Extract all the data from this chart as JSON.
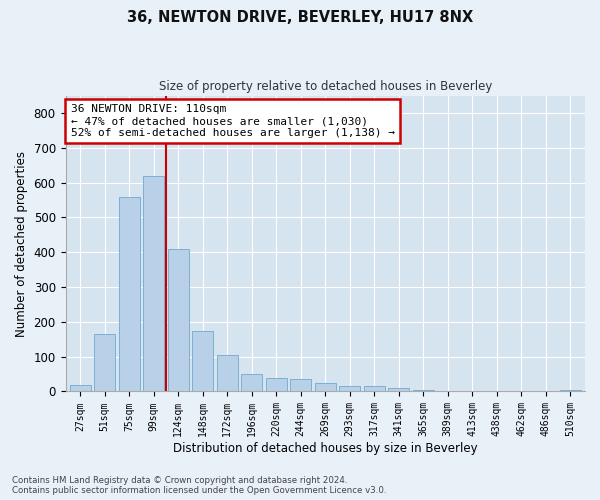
{
  "title": "36, NEWTON DRIVE, BEVERLEY, HU17 8NX",
  "subtitle": "Size of property relative to detached houses in Beverley",
  "xlabel": "Distribution of detached houses by size in Beverley",
  "ylabel": "Number of detached properties",
  "bar_color": "#b8d0e8",
  "bar_edge_color": "#7bafd4",
  "background_color": "#d6e4f0",
  "fig_background": "#e8f0f8",
  "grid_color": "#ffffff",
  "categories": [
    "27sqm",
    "51sqm",
    "75sqm",
    "99sqm",
    "124sqm",
    "148sqm",
    "172sqm",
    "196sqm",
    "220sqm",
    "244sqm",
    "269sqm",
    "293sqm",
    "317sqm",
    "341sqm",
    "365sqm",
    "389sqm",
    "413sqm",
    "438sqm",
    "462sqm",
    "486sqm",
    "510sqm"
  ],
  "values": [
    20,
    165,
    560,
    620,
    410,
    175,
    105,
    50,
    40,
    35,
    25,
    15,
    15,
    10,
    5,
    0,
    0,
    0,
    0,
    0,
    5
  ],
  "ylim": [
    0,
    850
  ],
  "yticks": [
    0,
    100,
    200,
    300,
    400,
    500,
    600,
    700,
    800
  ],
  "vline_x": 3.5,
  "vline_color": "#cc0000",
  "annotation_line1": "36 NEWTON DRIVE: 110sqm",
  "annotation_line2": "← 47% of detached houses are smaller (1,030)",
  "annotation_line3": "52% of semi-detached houses are larger (1,138) →",
  "annotation_box_color": "#ffffff",
  "annotation_box_edge": "#cc0000",
  "footnote": "Contains HM Land Registry data © Crown copyright and database right 2024.\nContains public sector information licensed under the Open Government Licence v3.0."
}
